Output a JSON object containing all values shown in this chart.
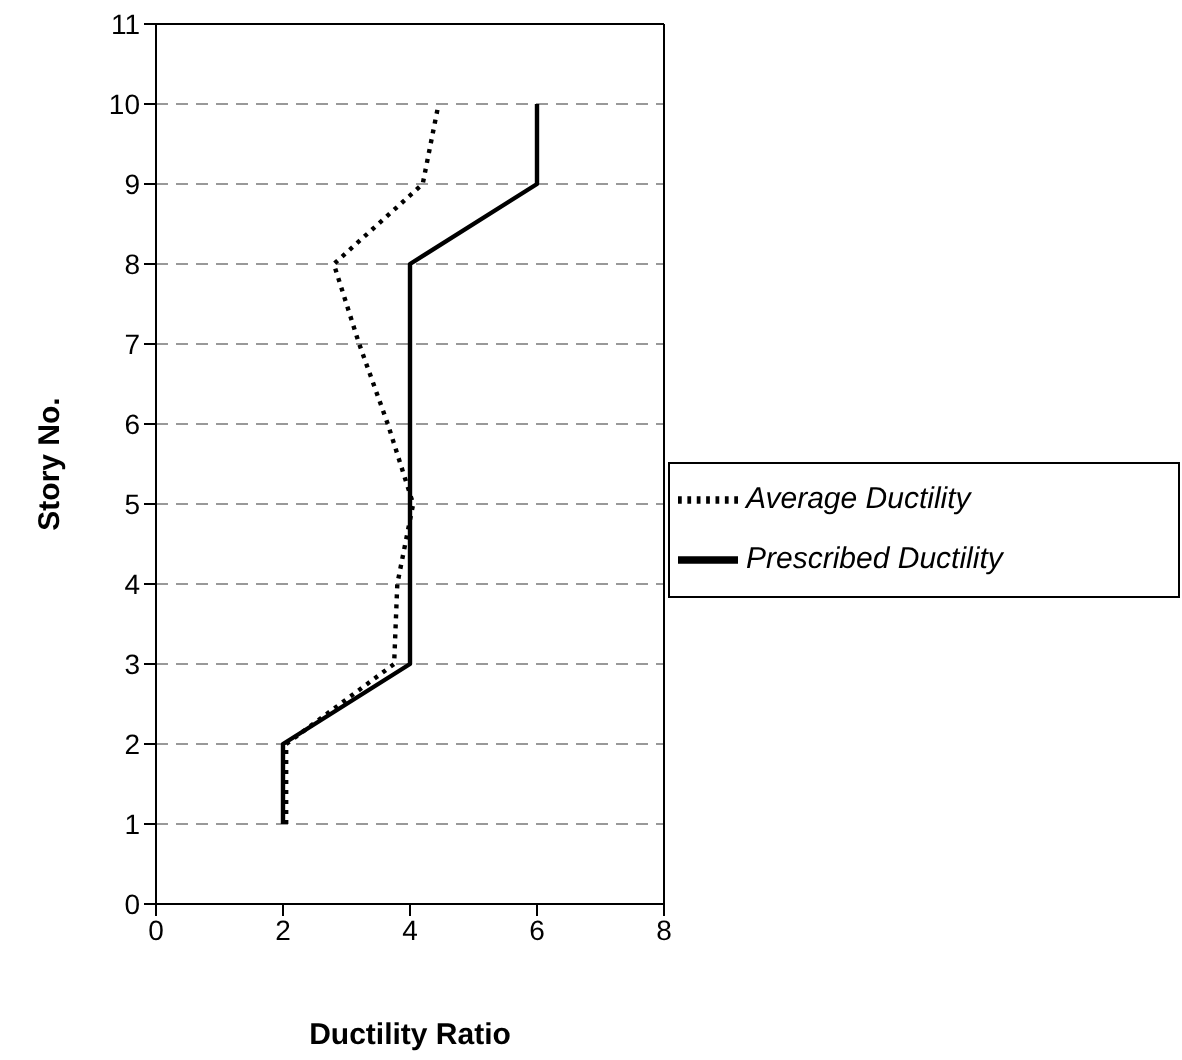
{
  "chart_data": {
    "type": "line",
    "orientation": "horizontal",
    "xlabel": "Ductility Ratio",
    "ylabel": "Story No.",
    "x": [
      1,
      2,
      3,
      4,
      5,
      6,
      7,
      8,
      9,
      10
    ],
    "series": [
      {
        "name": "Average Ductility",
        "color": "#000000",
        "line_style": "dotted",
        "values": [
          2.05,
          2.05,
          3.75,
          3.8,
          4.05,
          3.65,
          3.2,
          2.8,
          4.2,
          4.45
        ]
      },
      {
        "name": "Prescribed Ductility",
        "color": "#000000",
        "line_style": "solid",
        "values": [
          2,
          2,
          4,
          4,
          4,
          4,
          4,
          4,
          6,
          6
        ]
      }
    ],
    "xlim": [
      0,
      8
    ],
    "xticks": [
      0,
      2,
      4,
      6,
      8
    ],
    "ylim": [
      0,
      11
    ],
    "yticks": [
      0,
      1,
      2,
      3,
      4,
      5,
      6,
      7,
      8,
      9,
      10,
      11
    ],
    "grid": "y",
    "legend": "right",
    "marker": "none"
  }
}
